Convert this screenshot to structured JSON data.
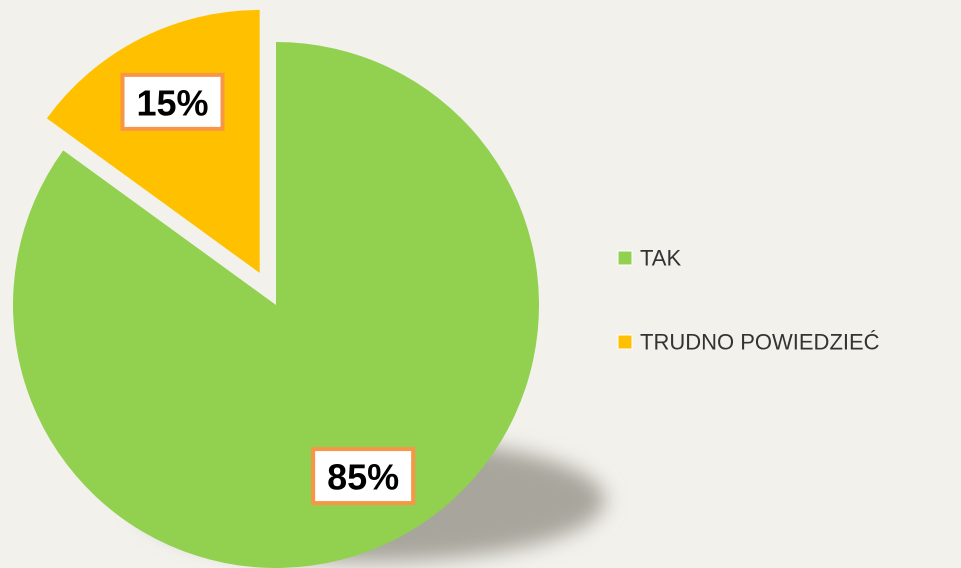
{
  "chart_data": {
    "type": "pie",
    "categories": [
      "TAK",
      "TRUDNO POWIEDZIEĆ"
    ],
    "values": [
      85,
      15
    ],
    "value_labels": [
      "85%",
      "15%"
    ],
    "colors": [
      "#92d050",
      "#ffc000"
    ],
    "legend": "right"
  }
}
